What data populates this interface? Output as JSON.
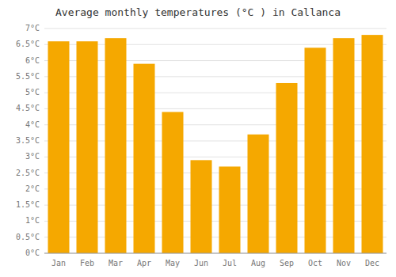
{
  "chart_data": {
    "type": "bar",
    "title": "Average monthly temperatures (°C ) in Callanca",
    "categories": [
      "Jan",
      "Feb",
      "Mar",
      "Apr",
      "May",
      "Jun",
      "Jul",
      "Aug",
      "Sep",
      "Oct",
      "Nov",
      "Dec"
    ],
    "values": [
      6.6,
      6.6,
      6.7,
      5.9,
      4.4,
      2.9,
      2.7,
      3.7,
      5.3,
      6.4,
      6.7,
      6.8
    ],
    "color": "#F5A800",
    "ylim": [
      0,
      7
    ],
    "yticks": [
      {
        "value": 0,
        "label": "0°C"
      },
      {
        "value": 0.5,
        "label": "0.5°C"
      },
      {
        "value": 1,
        "label": "1°C"
      },
      {
        "value": 1.5,
        "label": "1.5°C"
      },
      {
        "value": 2,
        "label": "2°C"
      },
      {
        "value": 2.5,
        "label": "2.5°C"
      },
      {
        "value": 3,
        "label": "3°C"
      },
      {
        "value": 3.5,
        "label": "3.5°C"
      },
      {
        "value": 4,
        "label": "4°C"
      },
      {
        "value": 4.5,
        "label": "4.5°C"
      },
      {
        "value": 5,
        "label": "5°C"
      },
      {
        "value": 5.5,
        "label": "5.5°C"
      },
      {
        "value": 6,
        "label": "6°C"
      },
      {
        "value": 6.5,
        "label": "6.5°C"
      },
      {
        "value": 7,
        "label": "7°C"
      }
    ],
    "grid": true
  }
}
